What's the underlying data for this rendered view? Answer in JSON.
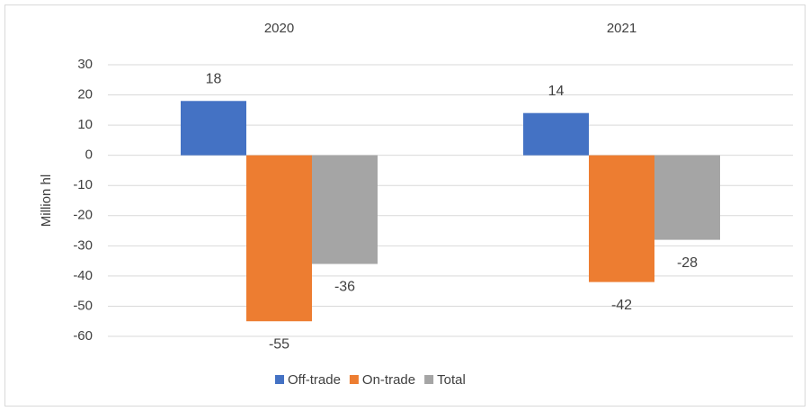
{
  "chart_data": {
    "type": "bar",
    "categories": [
      "2020",
      "2021"
    ],
    "series": [
      {
        "name": "Off-trade",
        "color": "#4472c4",
        "values": [
          18,
          14
        ]
      },
      {
        "name": "On-trade",
        "color": "#ed7d31",
        "values": [
          -55,
          -42
        ]
      },
      {
        "name": "Total",
        "color": "#a5a5a5",
        "values": [
          -36,
          -28
        ]
      }
    ],
    "y_label": "Million hl",
    "ylim": [
      -60,
      30
    ],
    "yticks": [
      30,
      20,
      10,
      0,
      -10,
      -20,
      -30,
      -40,
      -50,
      -60
    ],
    "grid": true,
    "legend": "bottom"
  }
}
